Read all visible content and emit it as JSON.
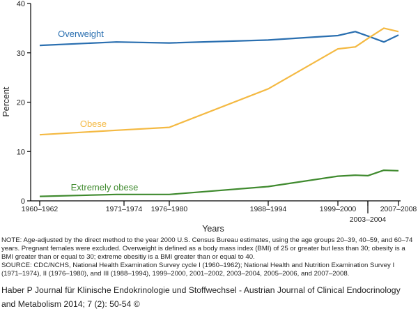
{
  "chart_data": {
    "type": "line",
    "ylabel": "Percent",
    "xlabel": "Years",
    "ylim": [
      0,
      40
    ],
    "yticks": [
      0,
      10,
      20,
      30,
      40
    ],
    "x_ticks_top": [
      "1960–1962",
      "1971–1974",
      "1976–1980",
      "1988–1994",
      "1999–2000",
      "2007–2008"
    ],
    "x_ticks_bottom": [
      "2003–2004"
    ],
    "series": [
      {
        "name": "Overweight",
        "color": "#2a6fb0",
        "values": [
          31.5,
          32.2,
          32.0,
          32.6,
          33.5,
          34.3,
          33.4,
          32.2,
          33.6
        ]
      },
      {
        "name": "Obese",
        "color": "#f4b942",
        "values": [
          13.4,
          14.3,
          14.9,
          22.7,
          30.8,
          31.2,
          32.9,
          35.0,
          34.3
        ]
      },
      {
        "name": "Extremely obese",
        "color": "#3f8a2e",
        "values": [
          0.9,
          1.3,
          1.3,
          2.9,
          5.0,
          5.2,
          5.1,
          6.2,
          6.1
        ]
      }
    ]
  },
  "notes": {
    "note_text": "NOTE: Age-adjusted by the direct method to the year 2000 U.S. Census Bureau estimates, using the age groups 20–39, 40–59, and 60–74 years. Pregnant females were excluded. Overweight is defined as a body mass index (BMI) of 25 or greater but less than 30; obesity is a BMI greater than or equal to 30; extreme obesitiy is a BMI greater than or equal to 40.",
    "source_text": "SOURCE: CDC/NCHS, National Health Examination Survey cycle I (1960–1962); National Health and Nutrition Examination Survey I (1971–1974), II (1976–1980), and III (1988–1994), 1999–2000, 2001–2002, 2003–2004, 2005–2006, and 2007–2008."
  },
  "citation": "Haber P Journal für Klinische Endokrinologie und Stoffwechsel - Austrian Journal of Clinical Endocrinology and Metabolism 2014; 7 (2): 50-54 ©"
}
